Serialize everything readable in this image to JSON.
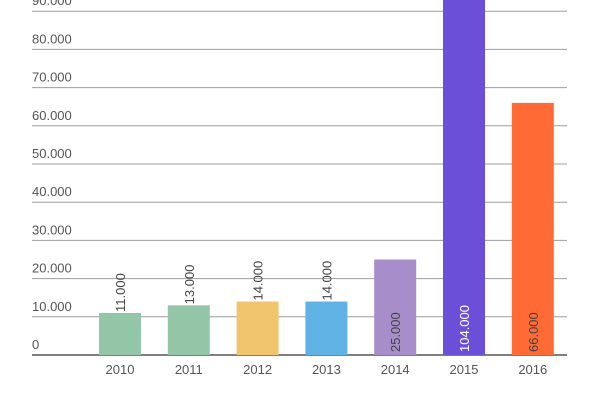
{
  "chart_data": {
    "type": "bar",
    "categories": [
      "2010",
      "2011",
      "2012",
      "2013",
      "2014",
      "2015",
      "2016"
    ],
    "values": [
      11000,
      13000,
      14000,
      14000,
      25000,
      104000,
      66000
    ],
    "value_labels": [
      "11.000",
      "13.000",
      "14.000",
      "14.000",
      "25.000",
      "104.000",
      "66.000"
    ],
    "colors": [
      "#93c6a7",
      "#93c6a7",
      "#f0c56d",
      "#5fb2e3",
      "#a78dc9",
      "#6c4fd9",
      "#ff6a35"
    ],
    "y_ticks": [
      {
        "value": 0,
        "label": "0"
      },
      {
        "value": 10000,
        "label": "10.000"
      },
      {
        "value": 20000,
        "label": "20.000"
      },
      {
        "value": 30000,
        "label": "30.000"
      },
      {
        "value": 40000,
        "label": "40.000"
      },
      {
        "value": 50000,
        "label": "50.000"
      },
      {
        "value": 60000,
        "label": "60.000"
      },
      {
        "value": 70000,
        "label": "70.000"
      },
      {
        "value": 80000,
        "label": "80.000"
      },
      {
        "value": 90000,
        "label": "90.000"
      }
    ],
    "ylim": [
      0,
      90000
    ],
    "grid": true,
    "title": "",
    "xlabel": "",
    "ylabel": ""
  }
}
